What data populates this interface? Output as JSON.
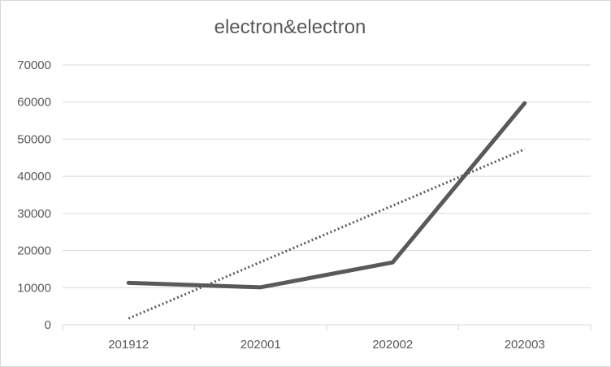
{
  "chart_data": {
    "type": "line",
    "title": "electron&electron",
    "categories": [
      "201912",
      "202001",
      "202002",
      "202003"
    ],
    "series": [
      {
        "values": [
          11300,
          10100,
          16800,
          59700
        ],
        "color": "#595959",
        "style": "solid"
      }
    ],
    "trendline": {
      "type": "linear",
      "values": [
        1700,
        16900,
        32100,
        47300
      ],
      "color": "#595959",
      "style": "dotted"
    },
    "ylim": [
      0,
      70000
    ],
    "yticks": [
      0,
      10000,
      20000,
      30000,
      40000,
      50000,
      60000,
      70000
    ],
    "grid": true,
    "legend": "none",
    "gridColor": "#d9d9d9",
    "textColor": "#595959"
  }
}
